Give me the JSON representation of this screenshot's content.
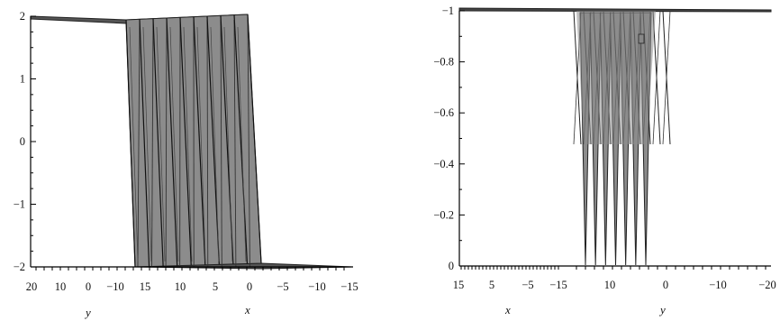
{
  "chart_data": [
    {
      "type": "surface",
      "title": "",
      "z_axis": {
        "ticks": [
          2,
          1,
          0,
          -1,
          -2
        ],
        "tick_labels": [
          "2",
          "1",
          "0",
          "−1",
          "−2"
        ]
      },
      "y_axis": {
        "label": "y",
        "tick_labels": [
          "20",
          "10",
          "0",
          "−10"
        ]
      },
      "x_axis": {
        "label": "x",
        "tick_labels": [
          "15",
          "10",
          "5",
          "0",
          "−5",
          "−10",
          "−15"
        ]
      },
      "description_values": {
        "upper_plateau": 2,
        "lower_plateau": -2,
        "kink_count": 10
      },
      "surface_color": "#8c8c8c",
      "grid": false
    },
    {
      "type": "surface",
      "title": "",
      "z_axis": {
        "ticks": [
          -1,
          -0.8,
          -0.6,
          -0.4,
          -0.2,
          0
        ],
        "tick_labels": [
          "−1",
          "−0.8",
          "−0.6",
          "−0.4",
          "−0.2",
          "0"
        ]
      },
      "x_axis": {
        "label": "x",
        "tick_labels": [
          "15",
          "5",
          "−5",
          "−15"
        ]
      },
      "y_axis": {
        "label": "y",
        "tick_labels": [
          "10",
          "0",
          "−10",
          "−20"
        ]
      },
      "description_values": {
        "background_level": -1,
        "spike_min": 0,
        "spike_count": 7
      },
      "surface_color": "#8c8c8c",
      "grid": false
    }
  ]
}
